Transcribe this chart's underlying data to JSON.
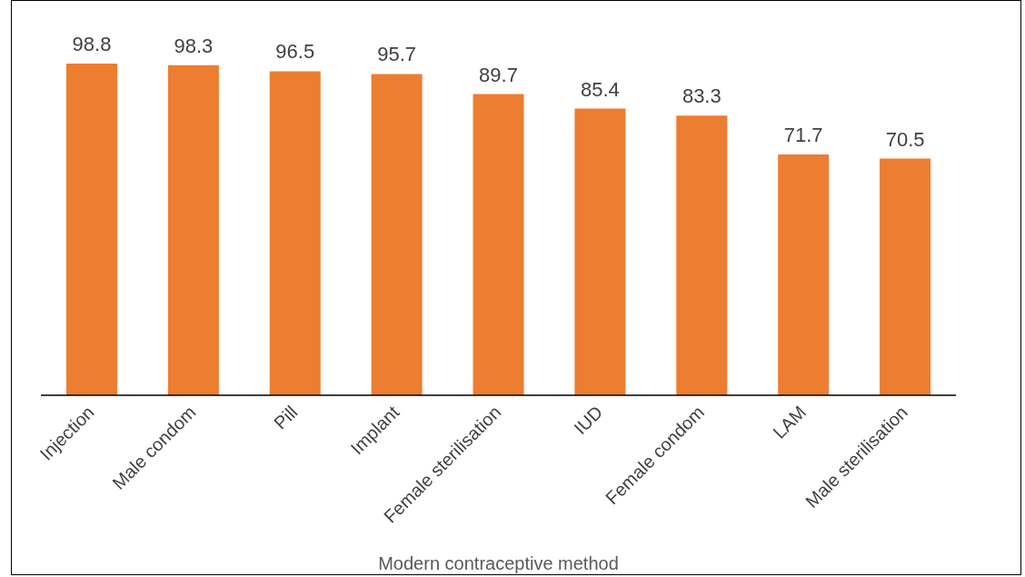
{
  "chart_data": {
    "type": "bar",
    "xlabel": "Modern contraceptive method",
    "categories": [
      "Injection",
      "Male condom",
      "Pill",
      "Implant",
      "Female sterilisation",
      "IUD",
      "Female condom",
      "LAM",
      "Male sterilisation"
    ],
    "values": [
      98.8,
      98.3,
      96.5,
      95.7,
      89.7,
      85.4,
      83.3,
      71.7,
      70.5
    ],
    "color": "#ed7d31",
    "tick_labels": "x",
    "data_labels": true,
    "grid": false,
    "legend": false
  }
}
